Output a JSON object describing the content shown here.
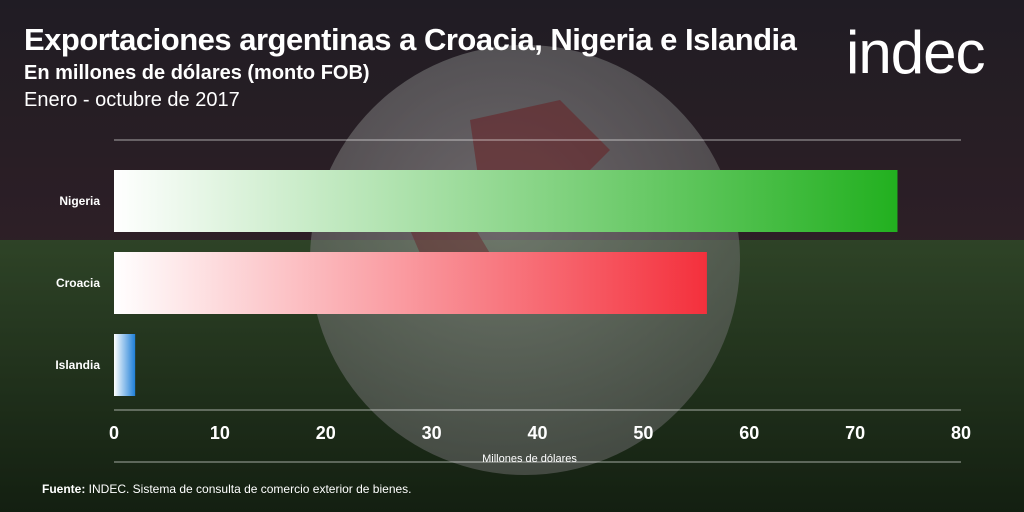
{
  "header": {
    "title": "Exportaciones argentinas a Croacia, Nigeria e Islandia",
    "subtitle": "En millones de dólares (monto FOB)",
    "period": "Enero - octubre de 2017",
    "logo": "indec"
  },
  "footer": {
    "source_label": "Fuente:",
    "source_text": " INDEC. Sistema de consulta de comercio exterior de bienes."
  },
  "chart_data": {
    "type": "bar",
    "orientation": "horizontal",
    "categories": [
      "Nigeria",
      "Croacia",
      "Islandia"
    ],
    "values": [
      74,
      56,
      2
    ],
    "bar_colors": [
      "#22b01f",
      "#f4303c",
      "#1e7fd8"
    ],
    "xlabel": "Millones de dólares",
    "xlim": [
      0,
      80
    ],
    "xticks": [
      0,
      10,
      20,
      30,
      40,
      50,
      60,
      70,
      80
    ]
  }
}
